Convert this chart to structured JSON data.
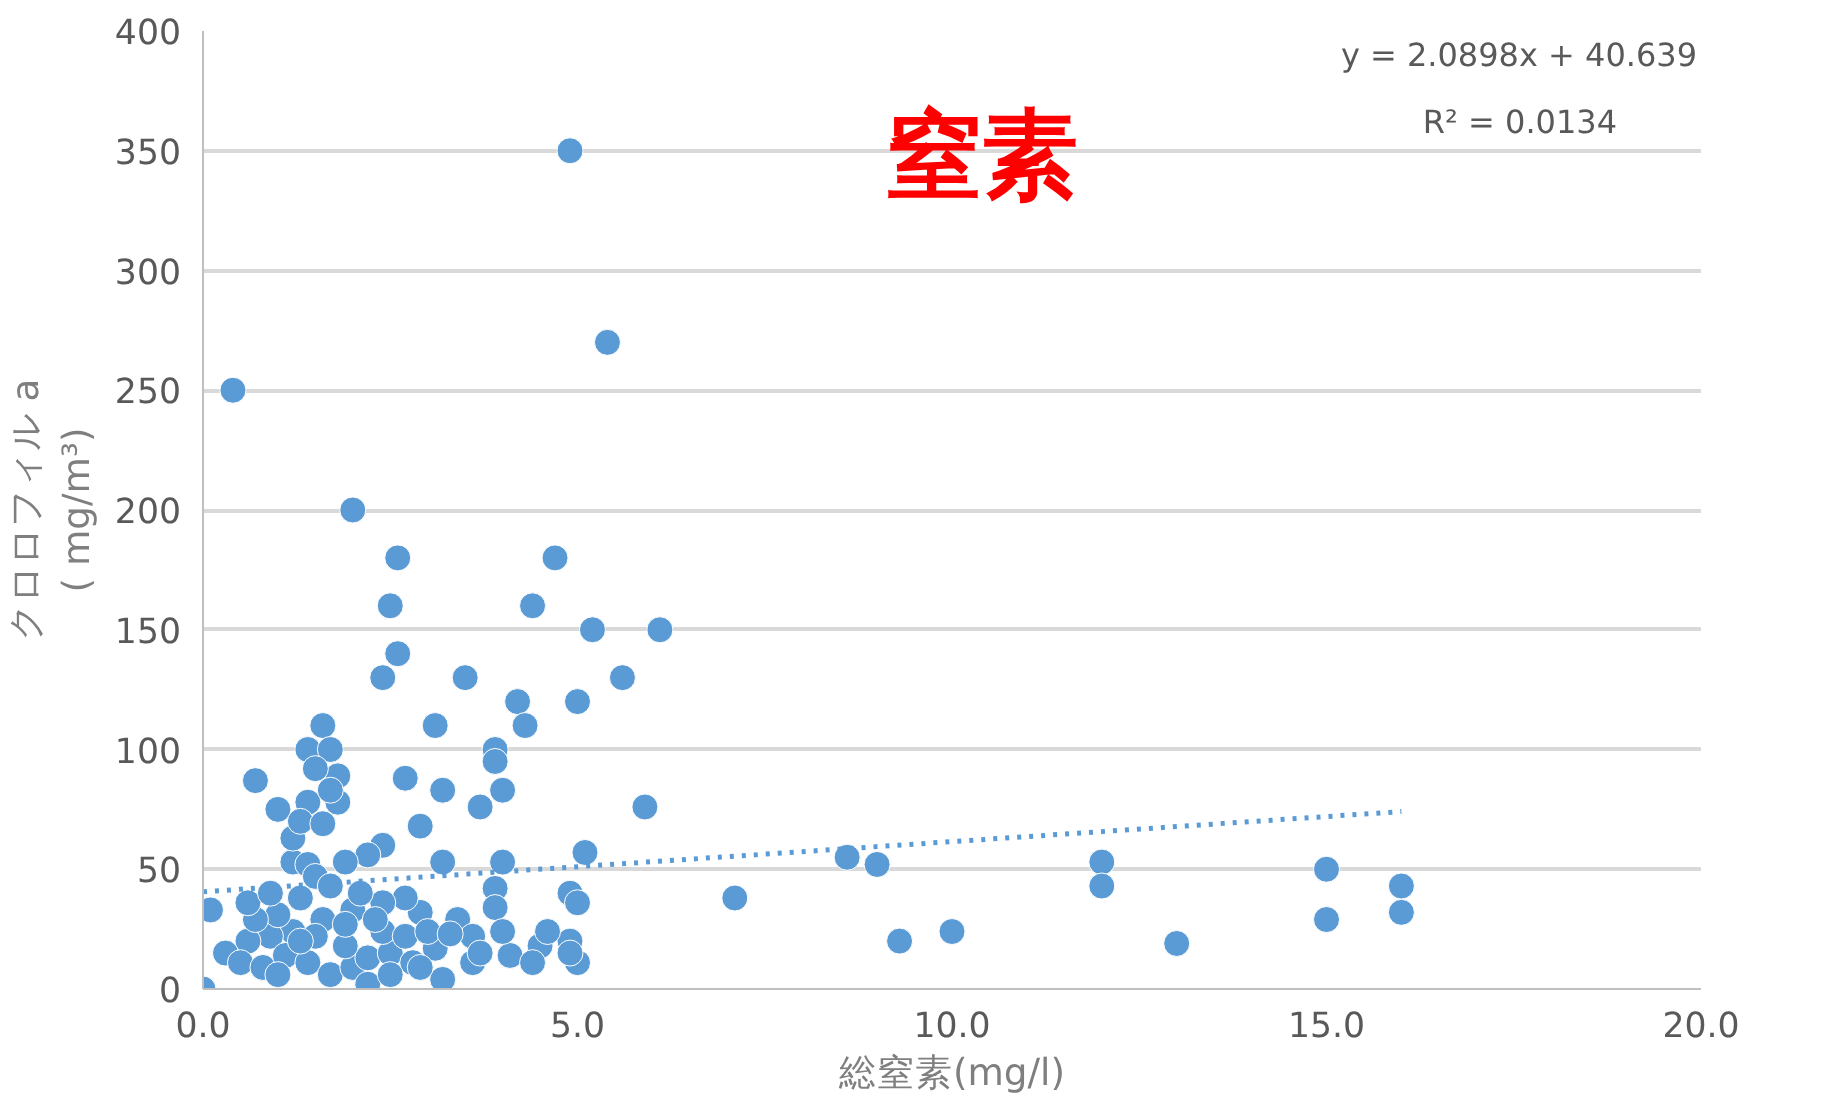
{
  "chart_data": {
    "type": "scatter",
    "title": "窒素",
    "xlabel": "総窒素(mg/l)",
    "ylabel": "クロロフィル a\n( mg/m³)",
    "annotations": [
      "y = 2.0898x + 40.639",
      "R² = 0.0134"
    ],
    "xlim": [
      0,
      20
    ],
    "xticks": [
      {
        "value": 0,
        "label": "0.0"
      },
      {
        "value": 5,
        "label": "5.0"
      },
      {
        "value": 10,
        "label": "10.0"
      },
      {
        "value": 15,
        "label": "15.0"
      },
      {
        "value": 20,
        "label": "20.0"
      }
    ],
    "ylim": [
      0,
      400
    ],
    "yticks": [
      0,
      50,
      100,
      150,
      200,
      250,
      300,
      350,
      400
    ],
    "grid": "y",
    "marker": "circle",
    "series": [
      {
        "color": "#5b9bd5",
        "x": [
          0,
          0.1,
          0.4,
          4.9,
          5.4,
          2.0,
          2.6,
          4.7,
          2.5,
          4.4,
          5.2,
          6.1,
          2.6,
          2.4,
          3.5,
          5.6,
          4.2,
          5.0,
          4.3,
          3.1,
          1.6,
          3.9,
          3.9,
          1.4,
          1.7,
          0.7,
          1.0,
          1.8,
          2.7,
          3.2,
          4.0,
          3.7,
          5.9,
          1.8,
          1.4,
          4.0,
          3.2,
          5.1,
          2.9,
          2.4,
          2.2,
          1.9,
          1.2,
          1.4,
          8.6,
          9.0,
          12.0,
          12.0,
          15.0,
          15.0,
          16.0,
          16.0,
          7.1,
          9.3,
          10.0,
          13.0,
          3.9,
          3.9,
          4.9,
          5.0,
          4.9,
          5.0,
          4.9,
          4.5,
          4.1,
          3.6,
          3.2,
          3.4,
          2.9,
          2.7,
          2.4,
          2.0,
          1.6,
          1.2,
          0.9,
          0.6,
          0.3,
          0.5,
          0.8,
          1.1,
          1.4,
          1.7,
          2.0,
          2.2,
          2.5,
          2.8,
          3.1,
          3.6,
          1.9,
          1.5,
          1.3,
          1.5,
          1.0,
          0.7,
          1.7,
          2.1,
          2.4,
          2.7,
          3.0,
          2.3,
          1.9,
          2.2,
          2.5,
          4.4,
          1.2,
          1.3,
          1.6,
          1.7,
          1.5,
          3.7,
          3.3,
          1.0,
          2.9,
          4.0,
          4.6,
          1.3,
          0.6,
          0.9
        ],
        "values": [
          0,
          33,
          250,
          350,
          270,
          200,
          180,
          180,
          160,
          160,
          150,
          150,
          140,
          130,
          130,
          130,
          120,
          120,
          110,
          110,
          110,
          100,
          95,
          100,
          100,
          87,
          75,
          89,
          88,
          83,
          83,
          76,
          76,
          78,
          78,
          53,
          53,
          57,
          68,
          60,
          56,
          53,
          53,
          52,
          55,
          52,
          53,
          43,
          50,
          29,
          43,
          32,
          38,
          20,
          24,
          19,
          42,
          34,
          40,
          36,
          20,
          11,
          15,
          18,
          14,
          11,
          4,
          29,
          32,
          38,
          36,
          33,
          29,
          24,
          22,
          20,
          15,
          11,
          9,
          14,
          11,
          6,
          9,
          13,
          15,
          11,
          17,
          22,
          18,
          22,
          38,
          47,
          31,
          29,
          43,
          40,
          24,
          22,
          24,
          29,
          27,
          2,
          6,
          11,
          63,
          70,
          69,
          83,
          92,
          15,
          23,
          6,
          9,
          24,
          24,
          20,
          36,
          40
        ]
      },
      {
        "type": "line",
        "color": "#5b9bd5",
        "line_style": "dotted",
        "marker": "none",
        "x": [
          0,
          16
        ],
        "values": [
          40.6,
          74.1
        ]
      }
    ]
  }
}
